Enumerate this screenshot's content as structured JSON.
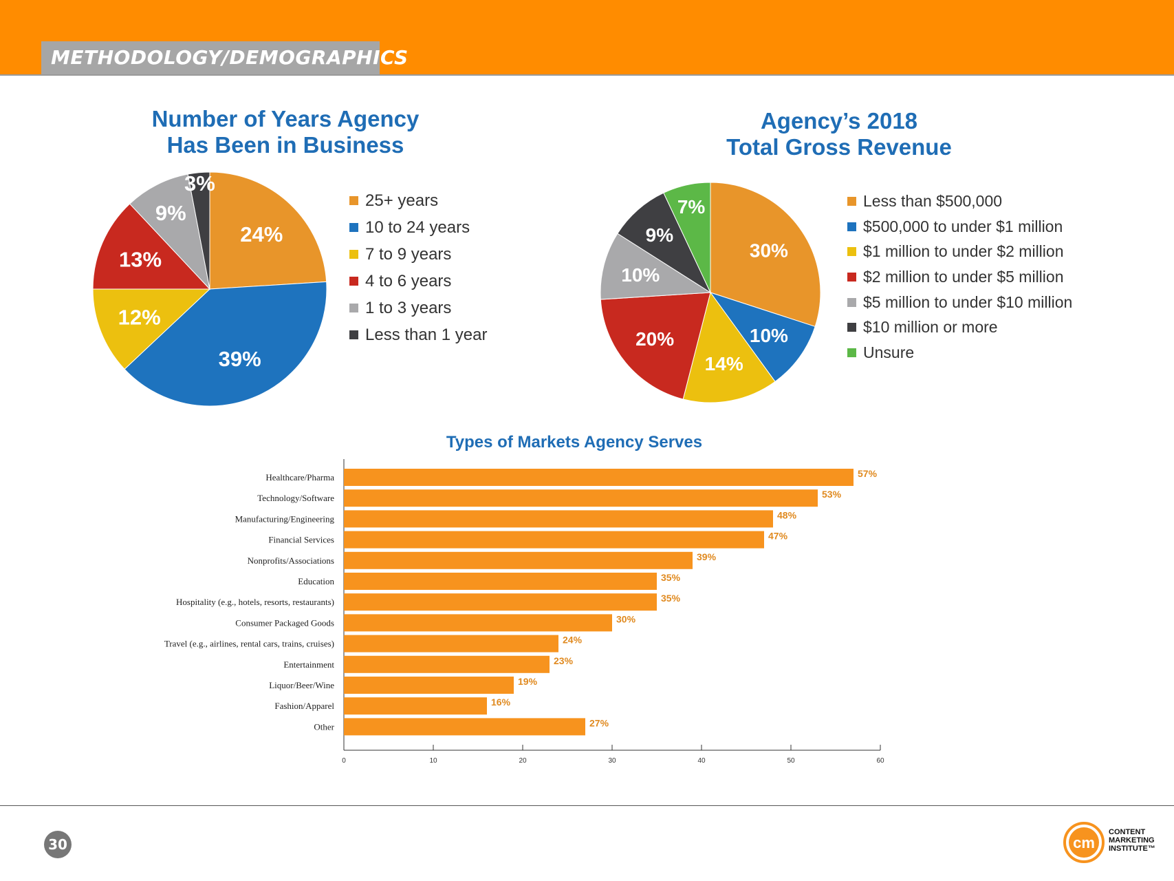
{
  "header": {
    "section_label": "METHODOLOGY/DEMOGRAPHICS"
  },
  "colors": {
    "orange": "#e8952a",
    "blue": "#1e73be",
    "yellow": "#ecc00f",
    "red": "#c8291f",
    "gray": "#a9a9ab",
    "dark": "#3f3f42",
    "green": "#5cb847",
    "bar": "#f7931e",
    "title_blue": "#1f6db5",
    "bar_label": "#e08a20"
  },
  "chart_data": [
    {
      "type": "pie",
      "title_line1": "Number of Years Agency",
      "title_line2": "Has Been in Business",
      "slices": [
        {
          "label": "25+ years",
          "value": 24,
          "display": "24%",
          "color": "#e8952a"
        },
        {
          "label": "10 to 24 years",
          "value": 39,
          "display": "39%",
          "color": "#1e73be"
        },
        {
          "label": "7 to 9 years",
          "value": 12,
          "display": "12%",
          "color": "#ecc00f"
        },
        {
          "label": "4 to 6 years",
          "value": 13,
          "display": "13%",
          "color": "#c8291f"
        },
        {
          "label": "1 to 3 years",
          "value": 9,
          "display": "9%",
          "color": "#a9a9ab"
        },
        {
          "label": "Less than 1 year",
          "value": 3,
          "display": "3%",
          "color": "#3f3f42"
        }
      ]
    },
    {
      "type": "pie",
      "title_line1": "Agency’s 2018",
      "title_line2": "Total Gross Revenue",
      "slices": [
        {
          "label": "Less than $500,000",
          "value": 30,
          "display": "30%",
          "color": "#e8952a"
        },
        {
          "label": "$500,000 to under $1 million",
          "value": 10,
          "display": "10%",
          "color": "#1e73be"
        },
        {
          "label": "$1 million to under $2 million",
          "value": 14,
          "display": "14%",
          "color": "#ecc00f"
        },
        {
          "label": "$2 million to under $5 million",
          "value": 20,
          "display": "20%",
          "color": "#c8291f"
        },
        {
          "label": "$5 million to under $10 million",
          "value": 10,
          "display": "10%",
          "color": "#a9a9ab"
        },
        {
          "label": "$10 million or more",
          "value": 9,
          "display": "9%",
          "color": "#3f3f42"
        },
        {
          "label": "Unsure",
          "value": 7,
          "display": "7%",
          "color": "#5cb847"
        }
      ]
    },
    {
      "type": "bar",
      "orientation": "horizontal",
      "title": "Types of Markets Agency Serves",
      "categories": [
        "Healthcare/Pharma",
        "Technology/Software",
        "Manufacturing/Engineering",
        "Financial Services",
        "Nonprofits/Associations",
        "Education",
        "Hospitality (e.g., hotels, resorts, restaurants)",
        "Consumer Packaged Goods",
        "Travel (e.g., airlines, rental cars, trains, cruises)",
        "Entertainment",
        "Liquor/Beer/Wine",
        "Fashion/Apparel",
        "Other"
      ],
      "values": [
        57,
        53,
        48,
        47,
        39,
        35,
        35,
        30,
        24,
        23,
        19,
        16,
        27
      ],
      "value_labels": [
        "57%",
        "53%",
        "48%",
        "47%",
        "39%",
        "35%",
        "35%",
        "30%",
        "24%",
        "23%",
        "19%",
        "16%",
        "27%"
      ],
      "xlim": [
        0,
        60
      ],
      "xticks": [
        0,
        10,
        20,
        30,
        40,
        50,
        60
      ],
      "xlabel": "",
      "ylabel": "",
      "grid": false
    }
  ],
  "footer": {
    "page_number": "30",
    "logo_mark": "cm",
    "logo_text": [
      "CONTENT",
      "MARKETING",
      "INSTITUTE™"
    ]
  }
}
